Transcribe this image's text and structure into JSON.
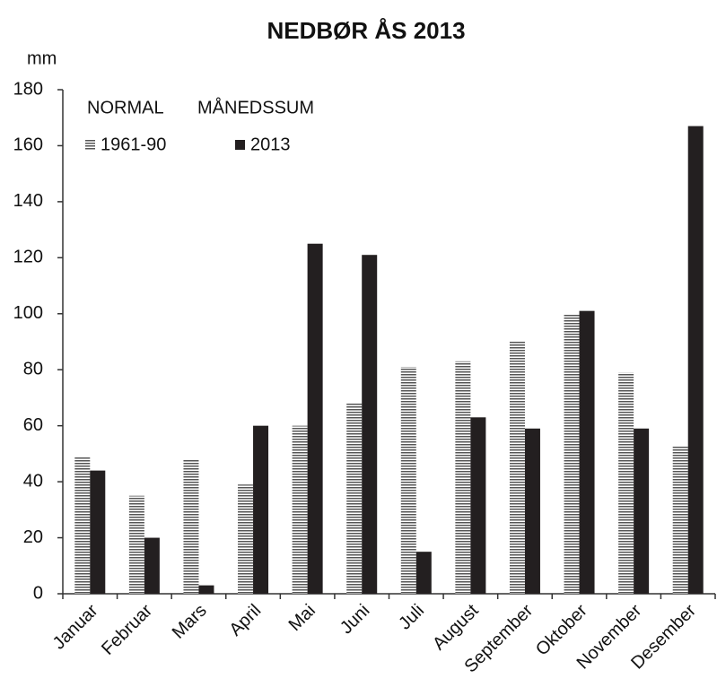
{
  "chart_data": {
    "type": "bar",
    "title": "NEDBØR ÅS 2013",
    "y_label": "mm",
    "legend_title": [
      "NORMAL",
      "MÅNEDSSUM"
    ],
    "categories": [
      "Januar",
      "Februar",
      "Mars",
      "April",
      "Mai",
      "Juni",
      "Juli",
      "August",
      "September",
      "Oktober",
      "November",
      "Desember"
    ],
    "series": [
      {
        "name": "1961-90",
        "color": "#555555",
        "pattern": "horizontal-stripes",
        "values": [
          49,
          35,
          48,
          39,
          60,
          68,
          81,
          83,
          90,
          100,
          79,
          53
        ]
      },
      {
        "name": "2013",
        "color": "#231f20",
        "pattern": "solid",
        "values": [
          44,
          20,
          3,
          60,
          125,
          121,
          15,
          63,
          59,
          101,
          59,
          167
        ]
      }
    ],
    "ylim": [
      0,
      180
    ],
    "yticks": [
      0,
      20,
      40,
      60,
      80,
      100,
      120,
      140,
      160,
      180
    ],
    "grid": false,
    "legend": "top-left"
  }
}
